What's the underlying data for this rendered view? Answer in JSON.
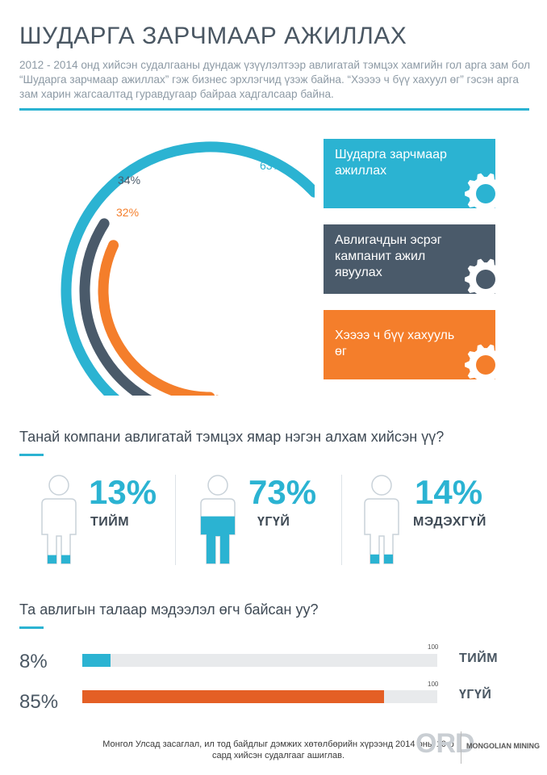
{
  "title": "ШУДАРГА ЗАРЧМААР АЖИЛЛАХ",
  "subtitle": "2012 - 2014 онд хийсэн судалгааны дундаж үзүүлэлтээр авлигатай тэмцэх хамгийн гол арга зам бол “Шударга зарчмаар ажиллах” гэж бизнес эрхлэгчид үзэж байна. “Хээээ ч бүү хахуул өг” гэсэн арга зам харин жагсаалтад гуравдугаар  байраа хадгалсаар байна.",
  "colors": {
    "blue": "#2bb3d2",
    "slate": "#4a5a6a",
    "orange": "#f47e2b",
    "bar_orange": "#e45f25",
    "track": "#e8eaec"
  },
  "chart_data": [
    {
      "type": "arc",
      "series": [
        {
          "rank": "1",
          "value": 63,
          "label": "63%",
          "name": "Шударга зарчмаар ажиллах",
          "color": "#2bb3d2"
        },
        {
          "rank": "2",
          "value": 34,
          "label": "34%",
          "name": "Авлигачдын эсрэг кампанит ажил явуулах",
          "color": "#4a5a6a"
        },
        {
          "rank": "3",
          "value": 32,
          "label": "32%",
          "name": "Хээээ ч бүү хахууль өг",
          "color": "#f47e2b"
        }
      ]
    },
    {
      "type": "pictogram",
      "question": "Танай компани авлигатай тэмцэх ямар нэгэн алхам хийсэн үү?",
      "items": [
        {
          "value": 13,
          "label": "13%",
          "name": "ТИЙМ"
        },
        {
          "value": 73,
          "label": "73%",
          "name": "ҮГҮЙ"
        },
        {
          "value": 14,
          "label": "14%",
          "name": "МЭДЭХГҮЙ"
        }
      ]
    },
    {
      "type": "bar",
      "question": "Та авлигын талаар мэдээлэл өгч байсан уу?",
      "max": 100,
      "max_label": "100",
      "items": [
        {
          "value": 8,
          "label": "8%",
          "name": "ТИЙМ",
          "color": "#2bb3d2"
        },
        {
          "value": 85,
          "label": "85%",
          "name": "ҮГҮЙ",
          "color": "#e45f25"
        }
      ]
    }
  ],
  "footer": "Монгол Улсад засаглал, ил тод байдлыг дэмжих хөтөлбөрийн хүрээнд 2014 оны 10-р сард хийсэн судалгааг ашиглав.",
  "logos": {
    "rd": "ORD",
    "mm": "MONGOLIAN MINING"
  }
}
